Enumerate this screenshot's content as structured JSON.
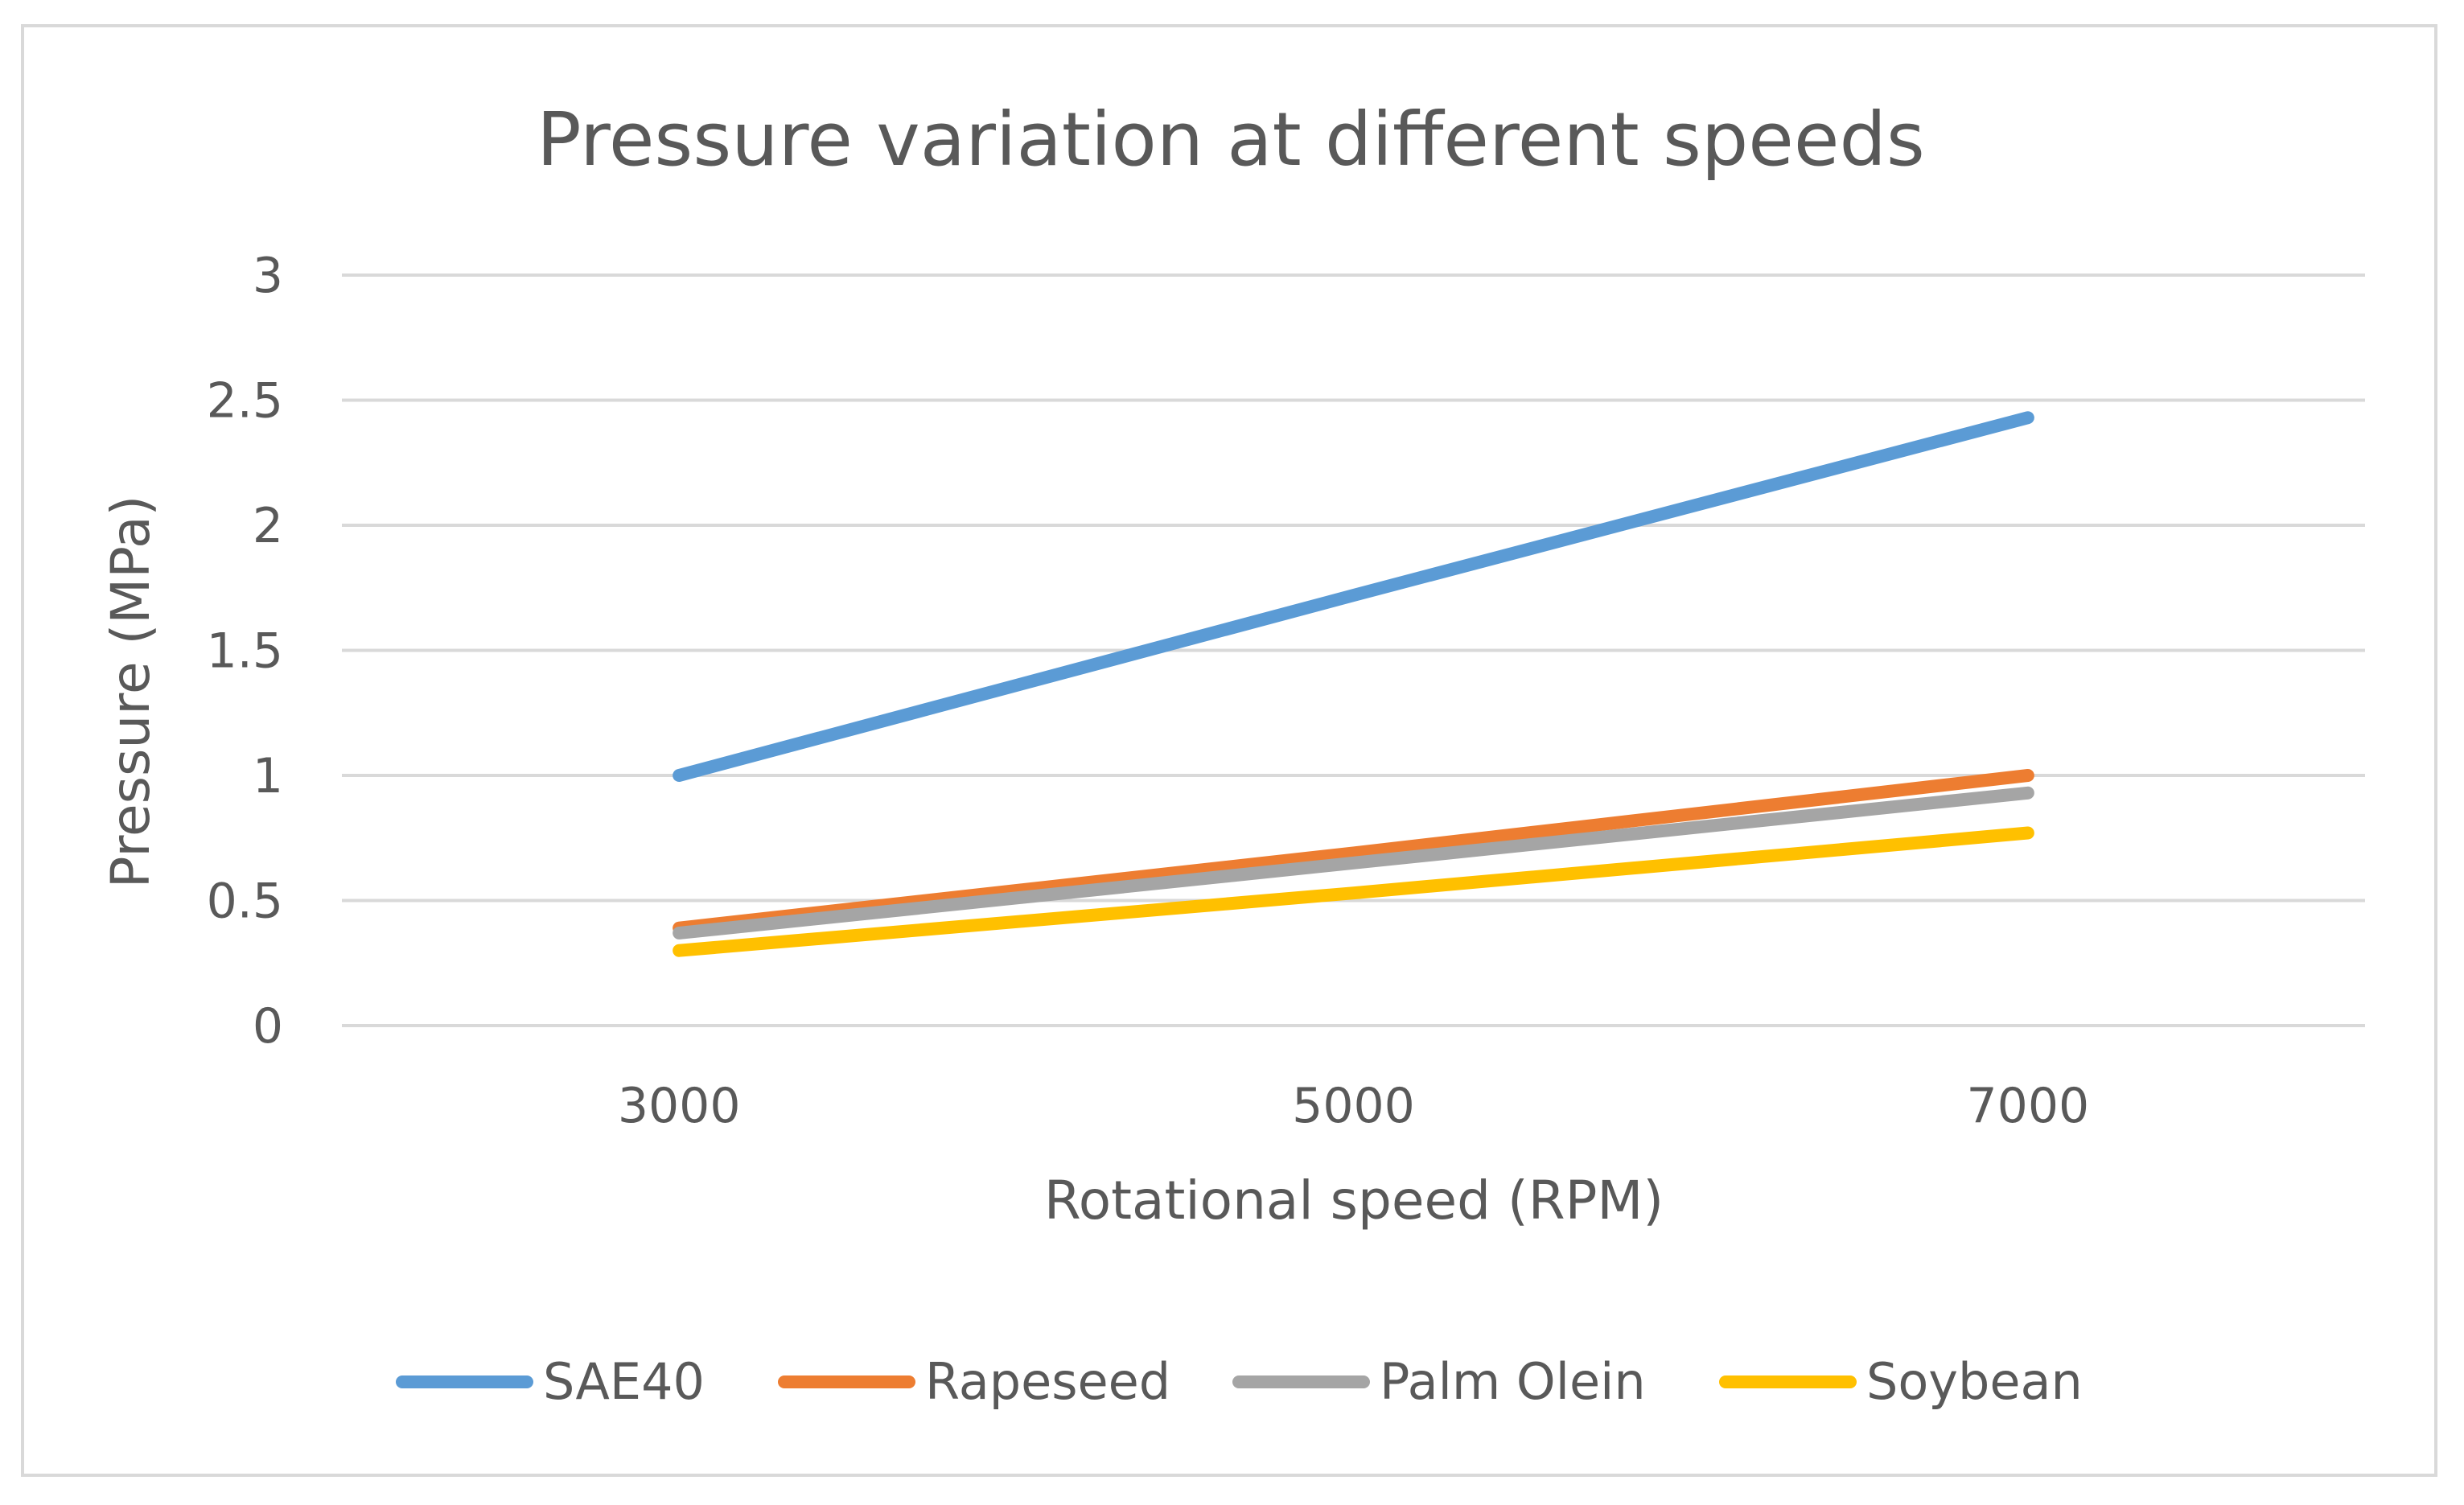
{
  "chart_data": {
    "type": "line",
    "title": "Pressure variation at different speeds",
    "xlabel": "Rotational speed (RPM)",
    "ylabel": "Pressure (MPa)",
    "categories": [
      "3000",
      "5000",
      "7000"
    ],
    "ylim": [
      0,
      3
    ],
    "yticks": [
      "0",
      "0.5",
      "1",
      "1.5",
      "2",
      "2.5",
      "3"
    ],
    "grid": true,
    "legend_position": "bottom",
    "series": [
      {
        "name": "SAE40",
        "color": "#5b9bd5",
        "values": [
          1.0,
          1.72,
          2.43
        ]
      },
      {
        "name": "Rapeseed",
        "color": "#ed7d31",
        "values": [
          0.39,
          0.69,
          1.0
        ]
      },
      {
        "name": "Palm Olein",
        "color": "#a5a5a5",
        "values": [
          0.37,
          0.65,
          0.93
        ]
      },
      {
        "name": "Soybean",
        "color": "#ffc000",
        "values": [
          0.3,
          0.53,
          0.77
        ]
      }
    ]
  }
}
